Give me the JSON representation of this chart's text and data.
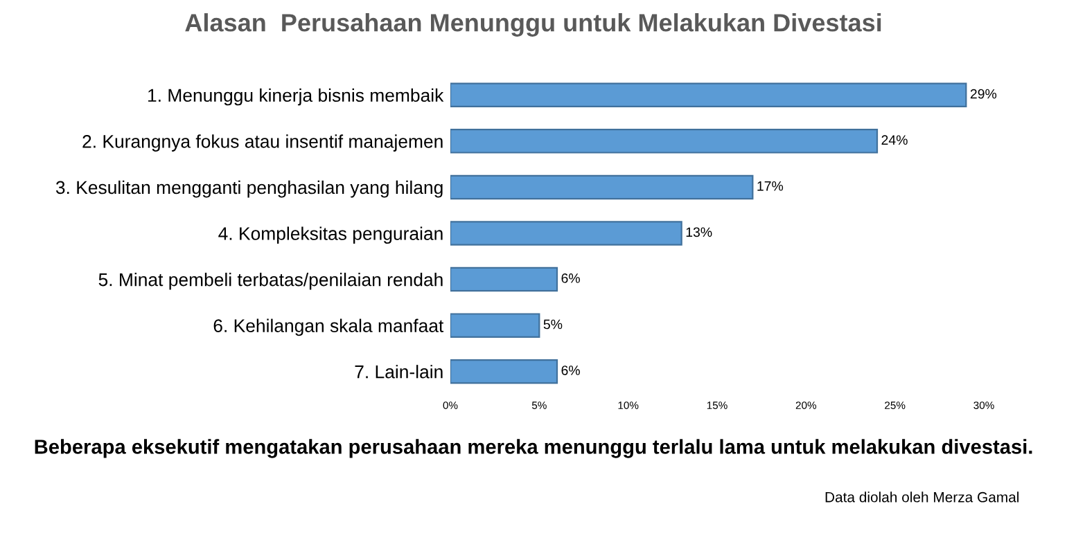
{
  "chart_data": {
    "type": "bar",
    "orientation": "horizontal",
    "title": "Alasan  Perusahaan Menunggu untuk Melakukan Divestasi",
    "categories": [
      "1. Menunggu kinerja bisnis membaik",
      "2. Kurangnya fokus atau insentif manajemen",
      "3. Kesulitan mengganti penghasilan yang hilang",
      "4. Kompleksitas penguraian",
      "5. Minat pembeli terbatas/penilaian rendah",
      "6. Kehilangan skala manfaat",
      "7. Lain-lain"
    ],
    "values": [
      29,
      24,
      17,
      13,
      6,
      5,
      6
    ],
    "value_labels": [
      "29%",
      "24%",
      "17%",
      "13%",
      "6%",
      "5%",
      "6%"
    ],
    "color": "#5b9bd5",
    "xlim": [
      0,
      30
    ],
    "xticks": [
      {
        "value": 0,
        "label": "0%"
      },
      {
        "value": 5,
        "label": "5%"
      },
      {
        "value": 10,
        "label": "10%"
      },
      {
        "value": 15,
        "label": "15%"
      },
      {
        "value": 20,
        "label": "20%"
      },
      {
        "value": 25,
        "label": "25%"
      },
      {
        "value": 30,
        "label": "30%"
      }
    ],
    "grid": false,
    "annotations": [
      "Beberapa eksekutif mengatakan perusahaan mereka menunggu terlalu lama untuk melakukan divestasi.",
      "Data diolah oleh Merza Gamal"
    ]
  }
}
